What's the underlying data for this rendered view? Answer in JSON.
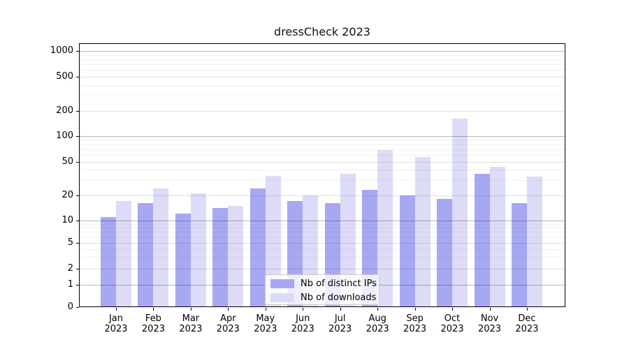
{
  "chart_data": {
    "type": "bar",
    "title": "dressCheck 2023",
    "categories": [
      "Jan",
      "Feb",
      "Mar",
      "Apr",
      "May",
      "Jun",
      "Jul",
      "Aug",
      "Sep",
      "Oct",
      "Nov",
      "Dec"
    ],
    "year_label": "2023",
    "series": [
      {
        "name": "Nb of distinct IPs",
        "color": "#a8a8f2",
        "values": [
          11,
          16,
          12,
          14,
          24,
          17,
          16,
          23,
          20,
          18,
          36,
          16
        ]
      },
      {
        "name": "Nb of downloads",
        "color": "#dcdcf8",
        "values": [
          17,
          24,
          21,
          15,
          34,
          20,
          36,
          68,
          57,
          160,
          43,
          33
        ]
      }
    ],
    "yscale": "asinh-symlog",
    "yticks": [
      0,
      1,
      2,
      5,
      10,
      20,
      50,
      100,
      200,
      500,
      1000
    ],
    "ytick_labels": [
      "0",
      "1",
      "2",
      "5",
      "10",
      "20",
      "50",
      "100",
      "200",
      "500",
      "1000"
    ],
    "ylim": [
      0,
      1200
    ],
    "grid": "both",
    "legend_position": "lower-center",
    "xlabel": "",
    "ylabel": ""
  },
  "colors": {
    "background": "#ffffff",
    "bar_distinct_ips": "#a8a8f2",
    "bar_downloads": "#dcdcf8",
    "grid_major": "rgba(0,0,0,0.28)",
    "grid_mid": "rgba(0,0,0,0.12)",
    "grid_minor": "rgba(0,0,0,0.055)",
    "spine": "#000000",
    "legend_border": "#cccccc",
    "text": "#000000"
  }
}
